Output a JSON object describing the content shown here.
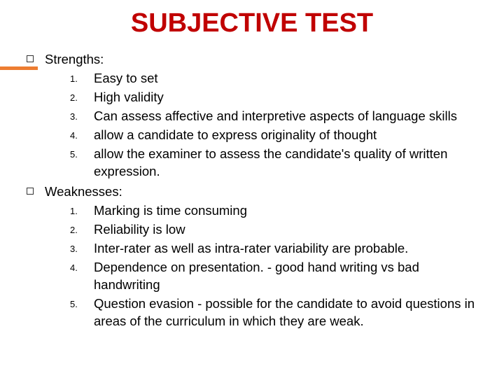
{
  "title": "SUBJECTIVE TEST",
  "title_color": "#c00000",
  "accent_color": "#ed7d31",
  "background_color": "#ffffff",
  "text_color": "#000000",
  "title_fontsize": 38,
  "body_fontsize": 18.5,
  "number_fontsize": 13,
  "sections": [
    {
      "heading": "Strengths:",
      "items": [
        {
          "num": "1.",
          "text": "Easy to set"
        },
        {
          "num": "2.",
          "text": "High validity"
        },
        {
          "num": "3.",
          "text": "Can assess affective and interpretive aspects of language skills"
        },
        {
          "num": "4.",
          "text": "allow a candidate to express originality of thought"
        },
        {
          "num": "5.",
          "text": "allow the examiner to assess the candidate's quality of written expression."
        }
      ]
    },
    {
      "heading": "Weaknesses:",
      "items": [
        {
          "num": "1.",
          "text": "Marking is time consuming"
        },
        {
          "num": "2.",
          "text": "Reliability is low"
        },
        {
          "num": "3.",
          "text": "Inter-rater as well as intra-rater  variability are probable."
        },
        {
          "num": "4.",
          "text": "Dependence on presentation. - good hand writing vs bad handwriting"
        },
        {
          "num": "5.",
          "text": "Question evasion - possible for the candidate to avoid questions in areas of the curriculum in which they are weak."
        }
      ]
    }
  ]
}
